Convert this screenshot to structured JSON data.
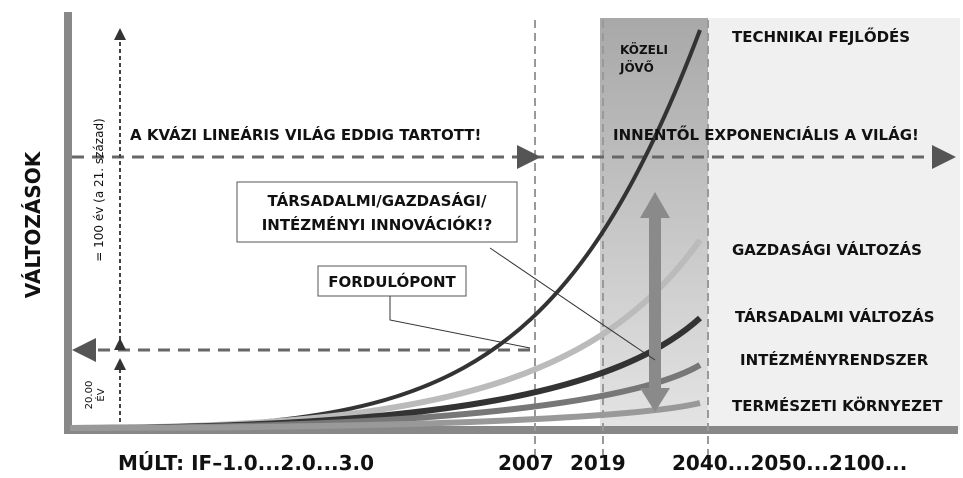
{
  "y_axis_label": "VÁLTOZÁSOK",
  "span_100": "= 100 év (a 21. század)",
  "span_20": [
    "20.00",
    "ÉV"
  ],
  "linear_world": "A KVÁZI LINEÁRIS VILÁG EDDIG TARTOTT!",
  "exponential_world": "INNENTŐL EXPONENCIÁLIS A VILÁG!",
  "near_future": [
    "KÖZELI",
    "JÖVŐ"
  ],
  "innovation_box": [
    "TÁRSADALMI/GAZDASÁGI/",
    "INTÉZMÉNYI INNOVÁCIÓK!?"
  ],
  "turning_point": "FORDULÓPONT",
  "curves": [
    "TECHNIKAI FEJLŐDÉS",
    "GAZDASÁGI VÁLTOZÁS",
    "TÁRSADALMI VÁLTOZÁS",
    "INTÉZMÉNYRENDSZER",
    "TERMÉSZETI KÖRNYEZET"
  ],
  "x_labels": {
    "past": "MÚLT: IF–1.0...2.0...3.0",
    "y2007": "2007",
    "y2019": "2019",
    "future": "2040...2050...2100..."
  }
}
